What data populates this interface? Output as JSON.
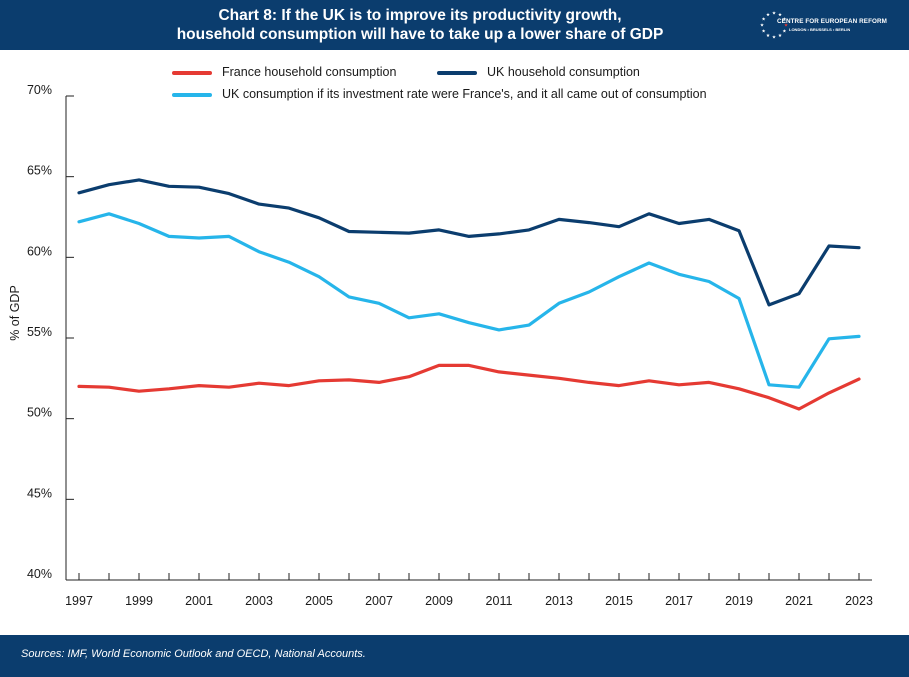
{
  "header": {
    "title_line1": "Chart 8: If the UK is to improve its productivity growth,",
    "title_line2": "household consumption will have to take up a lower share of GDP",
    "logo_main": "CENTRE FOR EUROPEAN REFORM",
    "logo_sub": "LONDON • BRUSSELS • BERLIN"
  },
  "footer": {
    "source": "Sources: IMF, World Economic Outlook and OECD, National Accounts."
  },
  "colors": {
    "header_bg": "#0b3d6e",
    "france": "#e53a33",
    "uk": "#0b3d6e",
    "uk_cf": "#26b5ea"
  },
  "chart_data": {
    "type": "line",
    "title": "Chart 8: If the UK is to improve its productivity growth, household consumption will have to take up a lower share of GDP",
    "ylabel": "% of GDP",
    "xlabel": "",
    "ylim": [
      40,
      70
    ],
    "yticks": [
      "40%",
      "45%",
      "50%",
      "55%",
      "60%",
      "65%",
      "70%"
    ],
    "ytick_values": [
      40,
      45,
      50,
      55,
      60,
      65,
      70
    ],
    "xlim": [
      1997,
      2023
    ],
    "xticks": [
      1997,
      1999,
      2001,
      2003,
      2005,
      2007,
      2009,
      2011,
      2013,
      2015,
      2017,
      2019,
      2021,
      2023
    ],
    "xtick_labels": [
      "1997",
      "1999",
      "2001",
      "2003",
      "2005",
      "2007",
      "2009",
      "2011",
      "2013",
      "2015",
      "2017",
      "2019",
      "2021",
      "2023"
    ],
    "legend_position": "top",
    "grid": false,
    "x": [
      1997,
      1998,
      1999,
      2000,
      2001,
      2002,
      2003,
      2004,
      2005,
      2006,
      2007,
      2008,
      2009,
      2010,
      2011,
      2012,
      2013,
      2014,
      2015,
      2016,
      2017,
      2018,
      2019,
      2020,
      2021,
      2022,
      2023
    ],
    "series": [
      {
        "name": "France household consumption",
        "color": "#e53a33",
        "values": [
          52.0,
          51.95,
          51.7,
          51.85,
          52.05,
          51.95,
          52.2,
          52.05,
          52.35,
          52.4,
          52.25,
          52.6,
          53.3,
          53.3,
          52.9,
          52.7,
          52.5,
          52.25,
          52.05,
          52.35,
          52.1,
          52.25,
          51.85,
          51.3,
          50.6,
          51.6,
          52.45
        ]
      },
      {
        "name": "UK household consumption",
        "color": "#0b3d6e",
        "values": [
          64.0,
          64.5,
          64.8,
          64.4,
          64.35,
          63.95,
          63.3,
          63.05,
          62.45,
          61.6,
          61.55,
          61.5,
          61.7,
          61.3,
          61.45,
          61.7,
          62.35,
          62.15,
          61.9,
          62.7,
          62.1,
          62.35,
          61.65,
          57.05,
          57.75,
          60.7,
          60.6
        ]
      },
      {
        "name": "UK consumption if its investment rate were France's, and it all came out of consumption",
        "color": "#26b5ea",
        "values": [
          62.2,
          62.7,
          62.1,
          61.3,
          61.2,
          61.3,
          60.35,
          59.7,
          58.8,
          57.55,
          57.15,
          56.25,
          56.5,
          55.95,
          55.5,
          55.8,
          57.15,
          57.85,
          58.8,
          59.65,
          58.95,
          58.5,
          57.45,
          52.1,
          51.95,
          54.95,
          55.1
        ]
      }
    ]
  }
}
